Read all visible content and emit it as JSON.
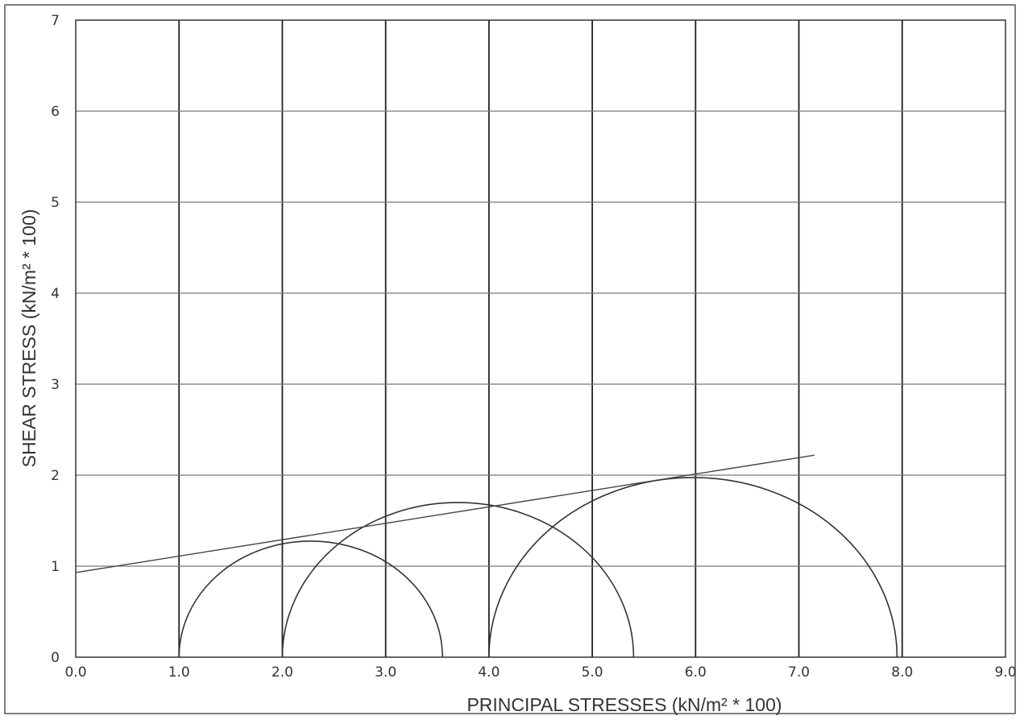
{
  "chart_data": {
    "type": "line",
    "title": "",
    "xlabel": "PRINCIPAL STRESSES (kN/m² * 100)",
    "ylabel": "SHEAR STRESS (kN/m² * 100)",
    "xlim": [
      0,
      9
    ],
    "ylim": [
      0,
      7
    ],
    "x_ticks": [
      "0.0",
      "1.0",
      "2.0",
      "3.0",
      "4.0",
      "5.0",
      "6.0",
      "7.0",
      "8.0",
      "9.0"
    ],
    "y_ticks": [
      "0",
      "1",
      "2",
      "3",
      "4",
      "5",
      "6",
      "7"
    ],
    "grid": true,
    "mohr_circles": [
      {
        "sigma3": 1.0,
        "sigma1": 3.55
      },
      {
        "sigma3": 2.0,
        "sigma1": 5.4
      },
      {
        "sigma3": 4.0,
        "sigma1": 7.95
      }
    ],
    "failure_envelope": {
      "x": [
        0.0,
        7.15
      ],
      "y": [
        0.93,
        2.22
      ]
    }
  }
}
